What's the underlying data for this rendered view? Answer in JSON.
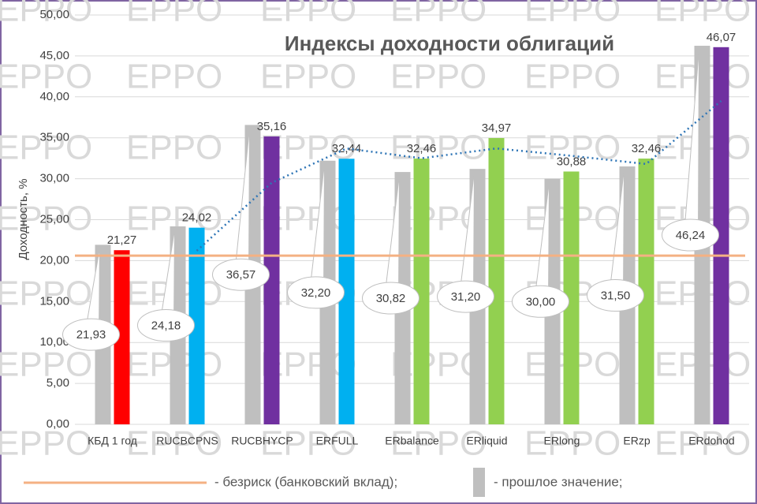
{
  "chart_data": {
    "type": "bar",
    "title": "Индексы доходности облигаций",
    "y_label": "Доходность, %",
    "watermark": "EPPO",
    "categories": [
      "КБД 1 год",
      "RUCBCPNS",
      "RUCBHYCP",
      "ERFULL",
      "ERbalance",
      "ERliquid",
      "ERlong",
      "ERzp",
      "ERdohod"
    ],
    "series": [
      {
        "name": "- прошлое значение;",
        "color": "#bfbfbf",
        "values": [
          21.93,
          24.18,
          36.57,
          32.2,
          30.82,
          31.2,
          30.0,
          31.5,
          46.24
        ],
        "value_labels": [
          "21,93",
          "24,18",
          "36,57",
          "32,20",
          "30,82",
          "31,20",
          "30,00",
          "31,50",
          "46,24"
        ]
      },
      {
        "colors": [
          "#ff0000",
          "#00b0f0",
          "#7030a0",
          "#00b0f0",
          "#92d050",
          "#92d050",
          "#92d050",
          "#92d050",
          "#7030a0"
        ],
        "values": [
          21.27,
          24.02,
          35.16,
          32.44,
          32.46,
          34.97,
          30.88,
          32.46,
          46.07
        ],
        "value_labels": [
          "21,27",
          "24,02",
          "35,16",
          "32,44",
          "32,46",
          "34,97",
          "30,88",
          "32,46",
          "46,07"
        ]
      }
    ],
    "trendline": {
      "color": "#2e75b6",
      "values": [
        null,
        21.2,
        29.5,
        33.7,
        32.5,
        33.7,
        32.8,
        31.8,
        39.5
      ]
    },
    "reference_line": {
      "name": "- безриск (банковский вклад);",
      "value": 20.6,
      "color": "#f4b183"
    },
    "ylim": [
      0,
      50
    ],
    "yticks": [
      {
        "value": 0,
        "label": "0,00"
      },
      {
        "value": 5,
        "label": "5,00"
      },
      {
        "value": 10,
        "label": "10,00"
      },
      {
        "value": 15,
        "label": "15,00"
      },
      {
        "value": 20,
        "label": "20,00"
      },
      {
        "value": 25,
        "label": "25,00"
      },
      {
        "value": 30,
        "label": "30,00"
      },
      {
        "value": 35,
        "label": "35,00"
      },
      {
        "value": 40,
        "label": "40,00"
      },
      {
        "value": 45,
        "label": "45,00"
      },
      {
        "value": 50,
        "label": "50,00"
      }
    ],
    "grid": true
  }
}
